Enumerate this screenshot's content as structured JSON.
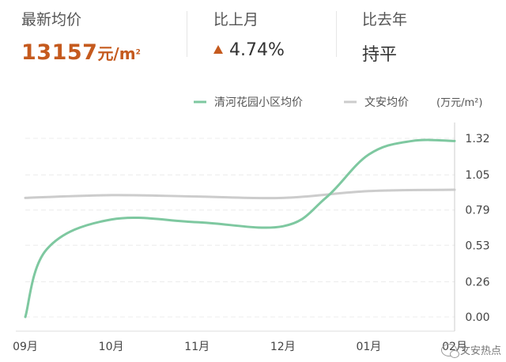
{
  "stats": {
    "latest": {
      "label": "最新均价",
      "value": "13157",
      "unit": "元/m",
      "unit_sup": "2"
    },
    "mom": {
      "label": "比上月",
      "value": "4.74%"
    },
    "yoy": {
      "label": "比去年",
      "value": "持平"
    }
  },
  "chart_data": {
    "type": "line",
    "x": [
      "09月",
      "10月",
      "11月",
      "12月",
      "01月",
      "02月"
    ],
    "unit": "(万元/m²)",
    "yticks": [
      "0.00",
      "0.26",
      "0.53",
      "0.79",
      "1.05",
      "1.32"
    ],
    "ylim": [
      0,
      1.32
    ],
    "grid": true,
    "legend_position": "top",
    "series": [
      {
        "name": "清河花园小区均价",
        "color": "#7ec8a0",
        "points": [
          [
            0,
            0.0
          ],
          [
            0.25,
            0.5
          ],
          [
            1,
            0.72
          ],
          [
            2,
            0.7
          ],
          [
            3,
            0.67
          ],
          [
            3.5,
            0.88
          ],
          [
            4,
            1.2
          ],
          [
            4.5,
            1.3
          ],
          [
            5,
            1.3
          ]
        ]
      },
      {
        "name": "文安均价",
        "color": "#cccccc",
        "points": [
          [
            0,
            0.88
          ],
          [
            1,
            0.9
          ],
          [
            2,
            0.89
          ],
          [
            3,
            0.88
          ],
          [
            4,
            0.93
          ],
          [
            5,
            0.94
          ]
        ]
      }
    ]
  },
  "watermark": "文安热点"
}
